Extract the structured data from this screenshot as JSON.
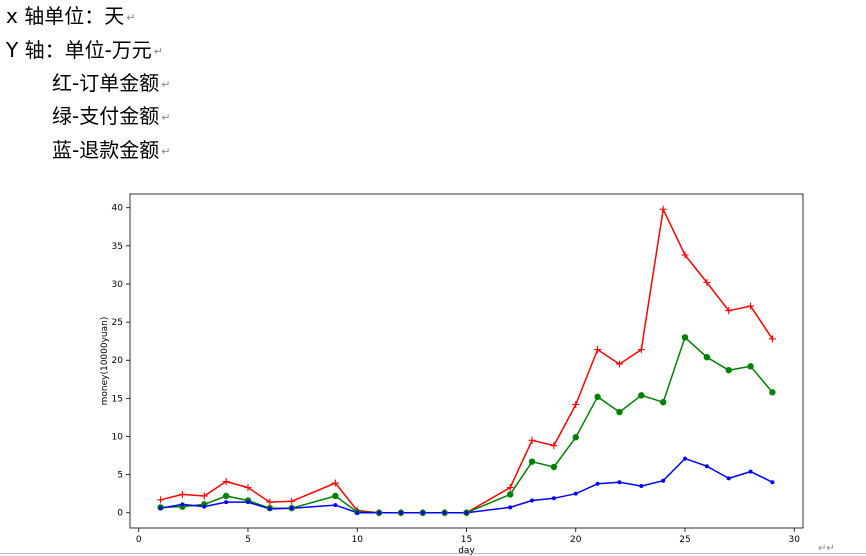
{
  "doc": {
    "lines": [
      {
        "text": "x 轴单位：天",
        "mark": "↵"
      },
      {
        "text": "Y 轴：单位-万元",
        "mark": "↵"
      },
      {
        "text": "红-订单金额",
        "mark": "↵"
      },
      {
        "text": "绿-支付金额",
        "mark": "↵"
      },
      {
        "text": "蓝-退款金额",
        "mark": "↵"
      }
    ],
    "end_mark": "↵↵"
  },
  "chart_data": {
    "type": "line",
    "title": "",
    "xlabel": "day",
    "ylabel": "money(10000yuan)",
    "xlim": [
      -0.4,
      30.4
    ],
    "ylim": [
      -2.0,
      41.8
    ],
    "xticks": [
      0,
      5,
      10,
      15,
      20,
      25,
      30
    ],
    "yticks": [
      0,
      5,
      10,
      15,
      20,
      25,
      30,
      35,
      40
    ],
    "grid": false,
    "legend": "none",
    "x": [
      1,
      2,
      3,
      4,
      5,
      6,
      7,
      9,
      10,
      11,
      12,
      13,
      14,
      15,
      17,
      18,
      19,
      20,
      21,
      22,
      23,
      24,
      25,
      26,
      27,
      28,
      29
    ],
    "series": [
      {
        "color": "#ff0000",
        "marker": "plus",
        "values": [
          1.7,
          2.4,
          2.2,
          4.1,
          3.3,
          1.4,
          1.5,
          3.9,
          0.3,
          0.0,
          0.0,
          0.0,
          0.0,
          0.0,
          3.3,
          9.5,
          8.8,
          14.2,
          21.4,
          19.5,
          21.4,
          39.8,
          33.8,
          30.2,
          26.5,
          27.1,
          22.8
        ]
      },
      {
        "color": "#008000",
        "marker": "circle",
        "values": [
          0.7,
          0.8,
          1.1,
          2.2,
          1.6,
          0.6,
          0.6,
          2.2,
          0.1,
          0.0,
          0.0,
          0.0,
          0.0,
          0.0,
          2.4,
          6.7,
          6.0,
          9.9,
          15.2,
          13.2,
          15.4,
          14.5,
          23.0,
          20.4,
          18.7,
          19.2,
          15.8
        ]
      },
      {
        "color": "#0000ff",
        "marker": "dot",
        "values": [
          0.6,
          1.1,
          0.8,
          1.4,
          1.4,
          0.5,
          0.6,
          1.0,
          0.0,
          0.0,
          0.0,
          0.0,
          0.0,
          0.0,
          0.7,
          1.6,
          1.9,
          2.5,
          3.8,
          4.0,
          3.5,
          4.2,
          7.1,
          6.1,
          4.5,
          5.4,
          4.0
        ]
      }
    ]
  }
}
